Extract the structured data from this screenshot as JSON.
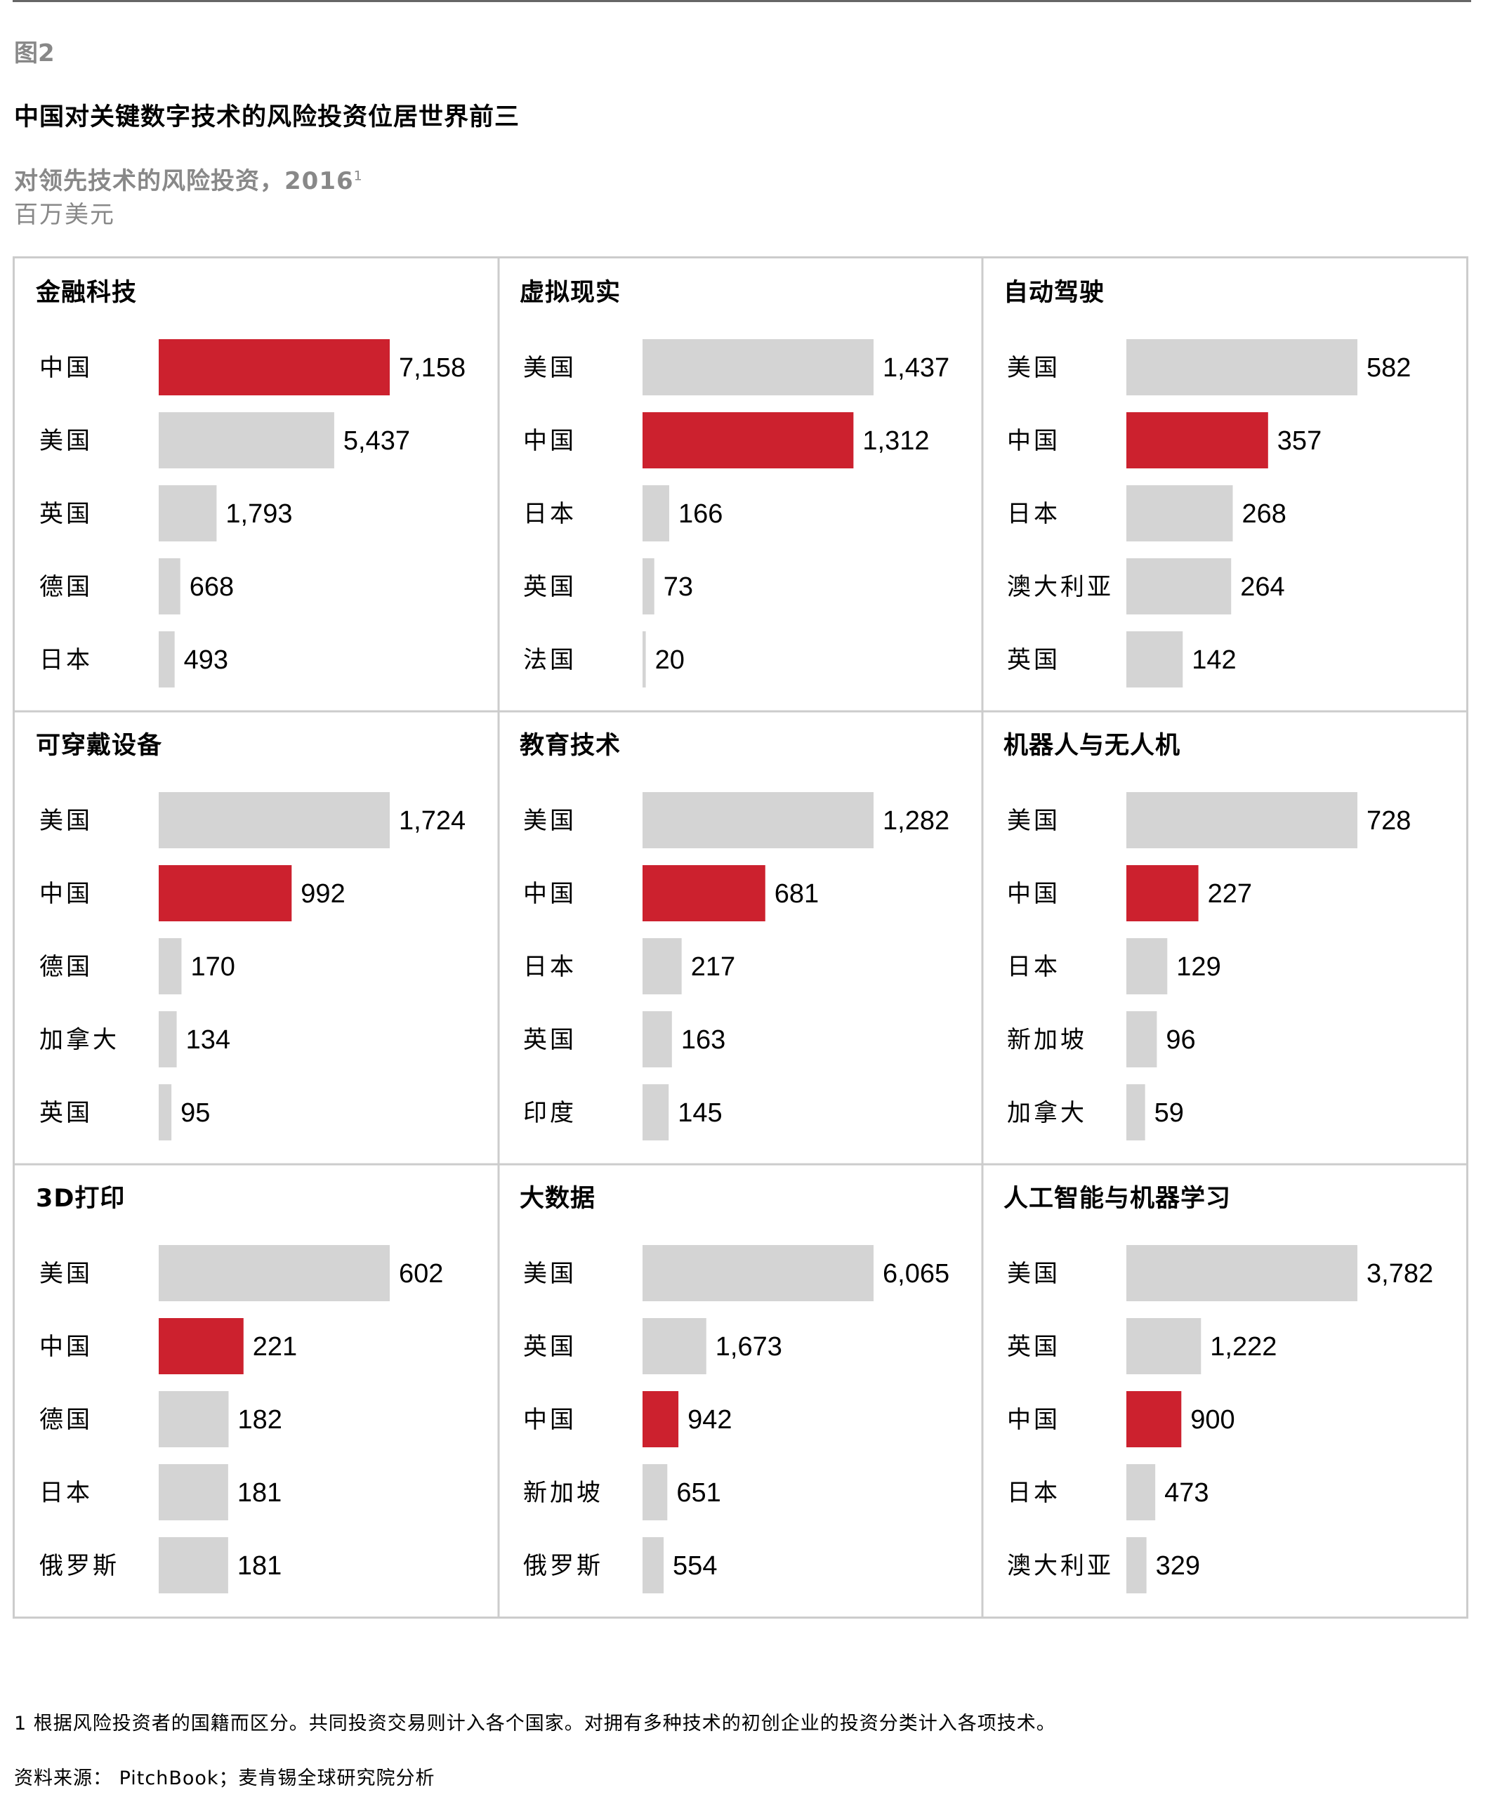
{
  "figure": {
    "label": "图2",
    "title": "中国对关键数字技术的风险投资位居世界前三",
    "subtitle": "对领先技术的风险投资，2016",
    "subtitle_sup": "1",
    "unit": "百万美元"
  },
  "colors": {
    "highlight": "#cc212e",
    "bar": "#d4d4d4",
    "border": "#cccccc"
  },
  "chart_data": [
    {
      "type": "bar",
      "title": "金融科技",
      "categories": [
        "中国",
        "美国",
        "英国",
        "德国",
        "日本"
      ],
      "values": [
        7158,
        5437,
        1793,
        668,
        493
      ],
      "labels": [
        "7,158",
        "5,437",
        "1,793",
        "668",
        "493"
      ],
      "highlight": "中国"
    },
    {
      "type": "bar",
      "title": "虚拟现实",
      "categories": [
        "美国",
        "中国",
        "日本",
        "英国",
        "法国"
      ],
      "values": [
        1437,
        1312,
        166,
        73,
        20
      ],
      "labels": [
        "1,437",
        "1,312",
        "166",
        "73",
        "20"
      ],
      "highlight": "中国"
    },
    {
      "type": "bar",
      "title": "自动驾驶",
      "categories": [
        "美国",
        "中国",
        "日本",
        "澳大利亚",
        "英国"
      ],
      "values": [
        582,
        357,
        268,
        264,
        142
      ],
      "labels": [
        "582",
        "357",
        "268",
        "264",
        "142"
      ],
      "highlight": "中国"
    },
    {
      "type": "bar",
      "title": "可穿戴设备",
      "categories": [
        "美国",
        "中国",
        "德国",
        "加拿大",
        "英国"
      ],
      "values": [
        1724,
        992,
        170,
        134,
        95
      ],
      "labels": [
        "1,724",
        "992",
        "170",
        "134",
        "95"
      ],
      "highlight": "中国"
    },
    {
      "type": "bar",
      "title": "教育技术",
      "categories": [
        "美国",
        "中国",
        "日本",
        "英国",
        "印度"
      ],
      "values": [
        1282,
        681,
        217,
        163,
        145
      ],
      "labels": [
        "1,282",
        "681",
        "217",
        "163",
        "145"
      ],
      "highlight": "中国"
    },
    {
      "type": "bar",
      "title": "机器人与无人机",
      "categories": [
        "美国",
        "中国",
        "日本",
        "新加坡",
        "加拿大"
      ],
      "values": [
        728,
        227,
        129,
        96,
        59
      ],
      "labels": [
        "728",
        "227",
        "129",
        "96",
        "59"
      ],
      "highlight": "中国"
    },
    {
      "type": "bar",
      "title": "3D打印",
      "categories": [
        "美国",
        "中国",
        "德国",
        "日本",
        "俄罗斯"
      ],
      "values": [
        602,
        221,
        182,
        181,
        181
      ],
      "labels": [
        "602",
        "221",
        "182",
        "181",
        "181"
      ],
      "highlight": "中国"
    },
    {
      "type": "bar",
      "title": "大数据",
      "categories": [
        "美国",
        "英国",
        "中国",
        "新加坡",
        "俄罗斯"
      ],
      "values": [
        6065,
        1673,
        942,
        651,
        554
      ],
      "labels": [
        "6,065",
        "1,673",
        "942",
        "651",
        "554"
      ],
      "highlight": "中国"
    },
    {
      "type": "bar",
      "title": "人工智能与机器学习",
      "categories": [
        "美国",
        "英国",
        "中国",
        "日本",
        "澳大利亚"
      ],
      "values": [
        3782,
        1222,
        900,
        473,
        329
      ],
      "labels": [
        "3,782",
        "1,222",
        "900",
        "473",
        "329"
      ],
      "highlight": "中国"
    }
  ],
  "footnote": "1 根据风险投资者的国籍而区分。共同投资交易则计入各个国家。对拥有多种技术的初创企业的投资分类计入各项技术。",
  "source": "资料来源： PitchBook；麦肯锡全球研究院分析"
}
